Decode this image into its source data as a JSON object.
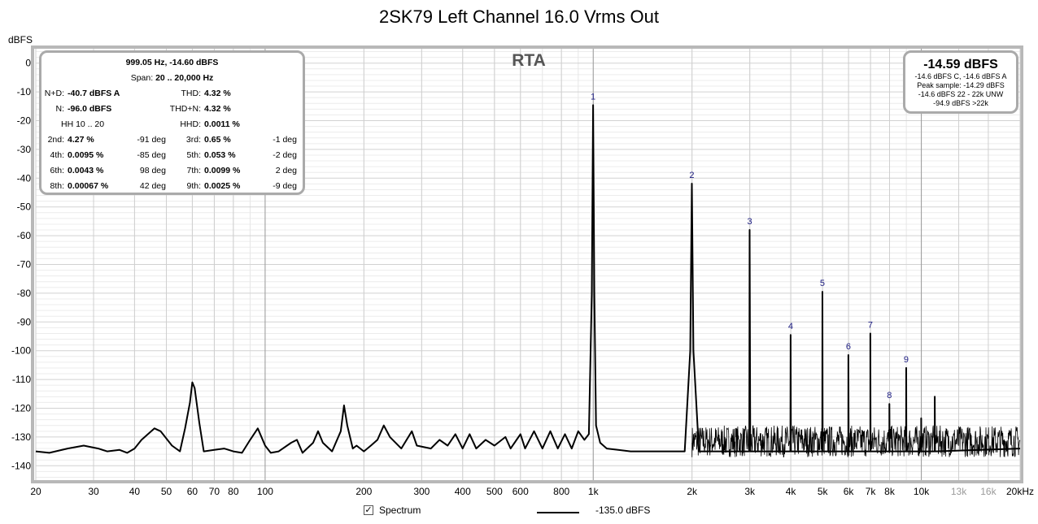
{
  "title": "2SK79 Left Channel 16.0 Vrms Out",
  "y_unit": "dBFS",
  "rta_label": "RTA",
  "distortion_panel": {
    "header": "999.05 Hz, -14.60 dBFS",
    "span_label": "Span:",
    "span_value": "20 .. 20,000 Hz",
    "nd_label": "N+D:",
    "nd_value": "-40.7 dBFS A",
    "thd_label": "THD:",
    "thd_value": "4.32 %",
    "n_label": "N:",
    "n_value": "-96.0 dBFS",
    "thdn_label": "THD+N:",
    "thdn_value": "4.32 %",
    "hh_label": "HH 10 .. 20",
    "hhd_label": "HHD:",
    "hhd_value": "0.0011 %",
    "harmonics": [
      {
        "label": "2nd:",
        "value": "4.27 %",
        "phase": "-91 deg"
      },
      {
        "label": "3rd:",
        "value": "0.65 %",
        "phase": "-1 deg"
      },
      {
        "label": "4th:",
        "value": "0.0095 %",
        "phase": "-85 deg"
      },
      {
        "label": "5th:",
        "value": "0.053 %",
        "phase": "-2 deg"
      },
      {
        "label": "6th:",
        "value": "0.0043 %",
        "phase": "98 deg"
      },
      {
        "label": "7th:",
        "value": "0.0099 %",
        "phase": "2 deg"
      },
      {
        "label": "8th:",
        "value": "0.00067 %",
        "phase": "42 deg"
      },
      {
        "label": "9th:",
        "value": "0.0025 %",
        "phase": "-9 deg"
      }
    ]
  },
  "level_panel": {
    "main": "-14.59 dBFS",
    "line1": "-14.6 dBFS C, -14.6 dBFS A",
    "line2": "Peak sample: -14.29 dBFS",
    "line3": "-14.6 dBFS 22 - 22k UNW",
    "line4": "-94.9 dBFS >22k"
  },
  "legend": {
    "checkbox_mark": "✓",
    "series_label": "Spectrum",
    "line_value": "-135.0 dBFS"
  },
  "chart_data": {
    "type": "line",
    "x_scale": "log",
    "xlim": [
      20,
      20000
    ],
    "ylim": [
      -145,
      5
    ],
    "grid": true,
    "x_ticks": [
      {
        "v": 20,
        "l": "20",
        "major": false
      },
      {
        "v": 30,
        "l": "30",
        "major": false
      },
      {
        "v": 40,
        "l": "40",
        "major": false
      },
      {
        "v": 50,
        "l": "50",
        "major": false
      },
      {
        "v": 60,
        "l": "60",
        "major": false
      },
      {
        "v": 70,
        "l": "70",
        "major": false
      },
      {
        "v": 80,
        "l": "80",
        "major": false
      },
      {
        "v": 100,
        "l": "100",
        "major": true
      },
      {
        "v": 200,
        "l": "200",
        "major": false
      },
      {
        "v": 300,
        "l": "300",
        "major": false
      },
      {
        "v": 400,
        "l": "400",
        "major": false
      },
      {
        "v": 500,
        "l": "500",
        "major": false
      },
      {
        "v": 600,
        "l": "600",
        "major": false
      },
      {
        "v": 800,
        "l": "800",
        "major": false
      },
      {
        "v": 1000,
        "l": "1k",
        "major": true
      },
      {
        "v": 2000,
        "l": "2k",
        "major": false
      },
      {
        "v": 3000,
        "l": "3k",
        "major": false
      },
      {
        "v": 4000,
        "l": "4k",
        "major": false
      },
      {
        "v": 5000,
        "l": "5k",
        "major": false
      },
      {
        "v": 6000,
        "l": "6k",
        "major": false
      },
      {
        "v": 7000,
        "l": "7k",
        "major": false
      },
      {
        "v": 8000,
        "l": "8k",
        "major": false
      },
      {
        "v": 10000,
        "l": "10k",
        "major": true
      },
      {
        "v": 13000,
        "l": "13k",
        "major": false,
        "grey": true
      },
      {
        "v": 16000,
        "l": "16k",
        "major": false,
        "grey": true
      },
      {
        "v": 20000,
        "l": "20kHz",
        "major": false
      }
    ],
    "y_ticks": [
      0,
      -10,
      -20,
      -30,
      -40,
      -50,
      -60,
      -70,
      -80,
      -90,
      -100,
      -110,
      -120,
      -130,
      -140
    ],
    "noise_floor": {
      "from_hz": 2000,
      "to_hz": 20000,
      "min_db": -137,
      "max_db": -126
    },
    "series": [
      {
        "color": "#000000",
        "points": [
          [
            20,
            -135
          ],
          [
            22,
            -135.5
          ],
          [
            25,
            -134
          ],
          [
            28,
            -133
          ],
          [
            31,
            -134
          ],
          [
            33,
            -135
          ],
          [
            36,
            -134.5
          ],
          [
            38,
            -135.5
          ],
          [
            40,
            -134
          ],
          [
            42,
            -131
          ],
          [
            46,
            -127
          ],
          [
            48,
            -128
          ],
          [
            52,
            -133
          ],
          [
            55,
            -135
          ],
          [
            57,
            -127
          ],
          [
            59,
            -118
          ],
          [
            60,
            -111
          ],
          [
            61,
            -113
          ],
          [
            63,
            -125
          ],
          [
            65,
            -135
          ],
          [
            70,
            -134.5
          ],
          [
            75,
            -134
          ],
          [
            80,
            -135
          ],
          [
            85,
            -135.5
          ],
          [
            90,
            -131
          ],
          [
            95,
            -127
          ],
          [
            100,
            -133
          ],
          [
            104,
            -135.5
          ],
          [
            110,
            -135
          ],
          [
            120,
            -132
          ],
          [
            125,
            -131
          ],
          [
            130,
            -135.5
          ],
          [
            140,
            -132
          ],
          [
            145,
            -128
          ],
          [
            150,
            -132
          ],
          [
            160,
            -135
          ],
          [
            170,
            -128
          ],
          [
            174,
            -119
          ],
          [
            178,
            -126
          ],
          [
            185,
            -134
          ],
          [
            190,
            -133
          ],
          [
            200,
            -135
          ],
          [
            210,
            -133
          ],
          [
            220,
            -131
          ],
          [
            230,
            -126
          ],
          [
            240,
            -130
          ],
          [
            260,
            -134
          ],
          [
            280,
            -128
          ],
          [
            290,
            -133
          ],
          [
            320,
            -134
          ],
          [
            340,
            -131
          ],
          [
            360,
            -133
          ],
          [
            380,
            -129
          ],
          [
            400,
            -134
          ],
          [
            420,
            -129
          ],
          [
            440,
            -134
          ],
          [
            470,
            -131
          ],
          [
            500,
            -133
          ],
          [
            540,
            -130
          ],
          [
            560,
            -134
          ],
          [
            600,
            -129
          ],
          [
            620,
            -134
          ],
          [
            660,
            -128
          ],
          [
            700,
            -134
          ],
          [
            740,
            -128
          ],
          [
            780,
            -134
          ],
          [
            820,
            -129
          ],
          [
            860,
            -134
          ],
          [
            900,
            -128
          ],
          [
            940,
            -131
          ],
          [
            970,
            -129
          ],
          [
            990,
            -80
          ],
          [
            999,
            -14.6
          ],
          [
            1008,
            -80
          ],
          [
            1020,
            -126
          ],
          [
            1050,
            -132
          ],
          [
            1100,
            -134
          ],
          [
            1300,
            -135
          ],
          [
            1600,
            -135
          ],
          [
            1900,
            -135
          ],
          [
            1975,
            -100
          ],
          [
            1998,
            -41.9
          ],
          [
            2020,
            -100
          ],
          [
            2100,
            -135
          ],
          [
            2990,
            -135
          ],
          [
            2997,
            -58
          ],
          [
            3010,
            -135
          ],
          [
            3990,
            -135
          ],
          [
            3996,
            -94.5
          ],
          [
            4005,
            -135
          ],
          [
            4990,
            -135
          ],
          [
            4995,
            -79.5
          ],
          [
            5005,
            -135
          ],
          [
            5990,
            -135
          ],
          [
            5994,
            -101.5
          ],
          [
            6005,
            -135
          ],
          [
            6990,
            -135
          ],
          [
            6993,
            -94
          ],
          [
            7005,
            -135
          ],
          [
            7990,
            -135
          ],
          [
            7992,
            -118.5
          ],
          [
            8005,
            -135
          ],
          [
            8990,
            -135
          ],
          [
            8991,
            -106
          ],
          [
            9005,
            -135
          ],
          [
            9990,
            -135
          ],
          [
            9991,
            -123.5
          ],
          [
            10005,
            -135
          ],
          [
            10990,
            -135
          ],
          [
            10990,
            -116
          ],
          [
            11005,
            -135
          ],
          [
            20000,
            -134
          ]
        ]
      }
    ],
    "harmonic_markers": [
      {
        "label": "1",
        "hz": 999,
        "db": -14.6
      },
      {
        "label": "2",
        "hz": 1998,
        "db": -41.9
      },
      {
        "label": "3",
        "hz": 2997,
        "db": -58
      },
      {
        "label": "4",
        "hz": 3996,
        "db": -94.5
      },
      {
        "label": "5",
        "hz": 4995,
        "db": -79.5
      },
      {
        "label": "6",
        "hz": 5994,
        "db": -101.5
      },
      {
        "label": "7",
        "hz": 6993,
        "db": -94
      },
      {
        "label": "8",
        "hz": 7992,
        "db": -118.5
      },
      {
        "label": "9",
        "hz": 8991,
        "db": -106
      }
    ]
  }
}
